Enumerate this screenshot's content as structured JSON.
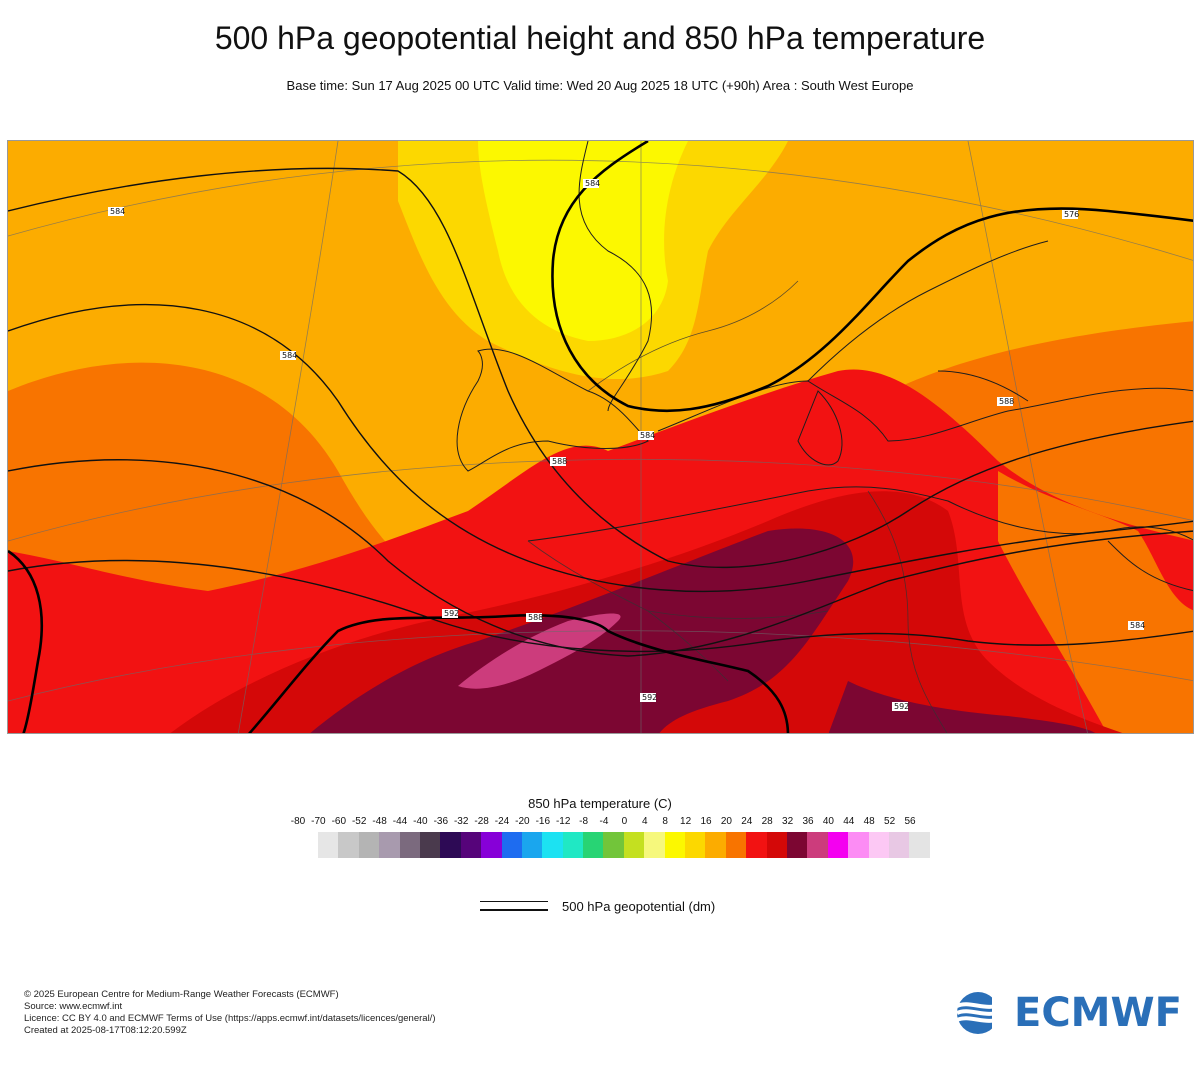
{
  "title": "500 hPa geopotential height and 850 hPa temperature",
  "subtitle": "Base time: Sun 17 Aug 2025 00 UTC Valid time: Wed 20 Aug 2025 18 UTC (+90h) Area : South West Europe",
  "legend": {
    "title": "850 hPa temperature (C)",
    "ticks": [
      "-80",
      "-70",
      "-60",
      "-52",
      "-48",
      "-44",
      "-40",
      "-36",
      "-32",
      "-28",
      "-24",
      "-20",
      "-16",
      "-12",
      "-8",
      "-4",
      "0",
      "4",
      "8",
      "12",
      "16",
      "20",
      "24",
      "28",
      "32",
      "36",
      "40",
      "44",
      "48",
      "52",
      "56"
    ],
    "colors": [
      "#e6e6e6",
      "#c8c8c8",
      "#b4b4b4",
      "#a89aae",
      "#7b6a7e",
      "#4a3a4d",
      "#2d0a55",
      "#56047a",
      "#8700d8",
      "#1e6cf0",
      "#1aa6ee",
      "#1ce2f2",
      "#20e8c4",
      "#28d474",
      "#72c53a",
      "#c4e020",
      "#f6f87c",
      "#fcf800",
      "#fcd800",
      "#fcac00",
      "#f87400",
      "#f21212",
      "#d40808",
      "#7c0632",
      "#cc3c7c",
      "#f400f0",
      "#fc8cf4",
      "#fcc8f4",
      "#e8c8e4",
      "#e4e4e4"
    ],
    "geopotential_label": "500 hPa geopotential (dm)"
  },
  "map": {
    "contour_labels": [
      "584",
      "584",
      "576",
      "588",
      "588",
      "584",
      "588",
      "592",
      "592",
      "592",
      "584",
      "584"
    ]
  },
  "footer": {
    "lines": [
      "© 2025 European Centre for Medium-Range Weather Forecasts (ECMWF)",
      "Source: www.ecmwf.int",
      "Licence: CC BY 4.0 and ECMWF Terms of Use (https://apps.ecmwf.int/datasets/licences/general/)",
      "Created at 2025-08-17T08:12:20.599Z"
    ]
  },
  "logo": {
    "text": "ECMWF",
    "color": "#2a6fb8"
  }
}
